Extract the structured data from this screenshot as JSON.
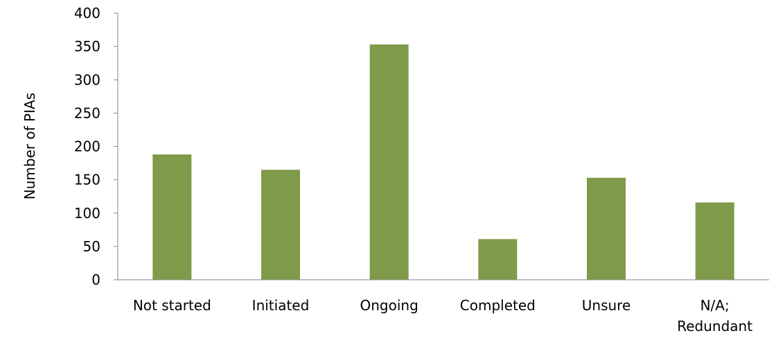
{
  "chart_data": {
    "type": "bar",
    "title": "",
    "xlabel": "",
    "ylabel": "Number of PIAs",
    "categories": [
      [
        "Not started"
      ],
      [
        "Initiated"
      ],
      [
        "Ongoing"
      ],
      [
        "Completed"
      ],
      [
        "Unsure"
      ],
      [
        "N/A;",
        "Redundant"
      ]
    ],
    "values": [
      188,
      165,
      353,
      61,
      153,
      116
    ],
    "ylim": [
      0,
      400
    ],
    "yticks": [
      0,
      50,
      100,
      150,
      200,
      250,
      300,
      350,
      400
    ],
    "grid": false,
    "legend": "none",
    "colors": {
      "bar": "#7f9a48",
      "axis": "#868686",
      "text": "#000000"
    }
  }
}
